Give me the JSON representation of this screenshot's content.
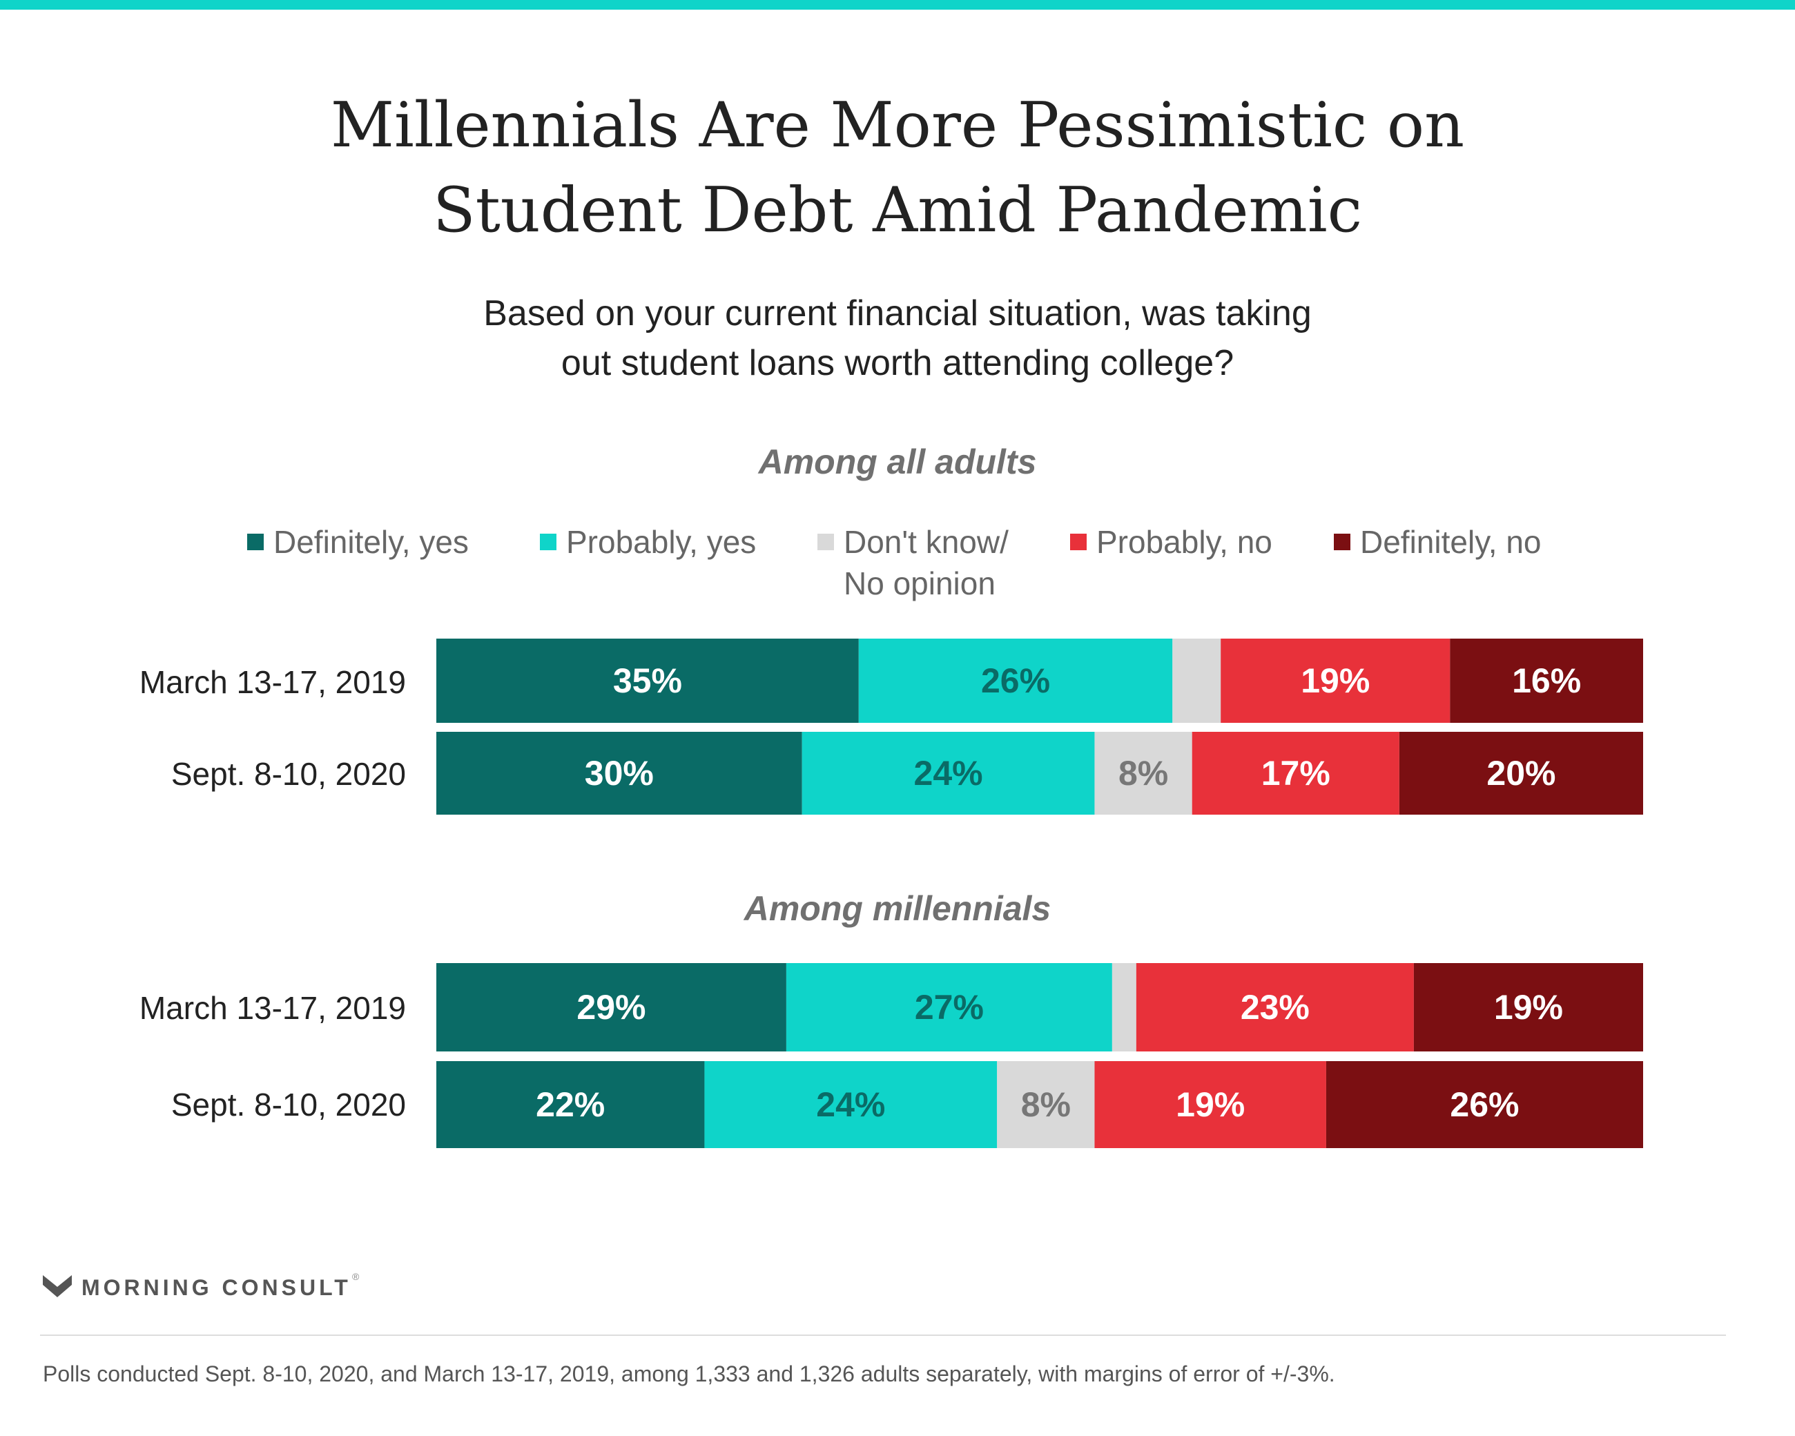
{
  "title_lines": [
    "Millennials Are More Pessimistic on",
    "Student Debt Amid Pandemic"
  ],
  "subtitle_lines": [
    "Based on your current financial situation, was taking",
    "out student loans worth attending college?"
  ],
  "legend": [
    {
      "label": "Definitely, yes",
      "color": "#0a6b66"
    },
    {
      "label": "Probably, yes",
      "color": "#0fd4c9"
    },
    {
      "label": "Don't know/\nNo opinion",
      "color": "#d9d9d9"
    },
    {
      "label": "Probably, no",
      "color": "#e8313a"
    },
    {
      "label": "Definitely, no",
      "color": "#7b0f12"
    }
  ],
  "chart_data": {
    "type": "bar",
    "orientation": "horizontal",
    "stacked": true,
    "unit": "%",
    "title": "Millennials Are More Pessimistic on Student Debt Amid Pandemic",
    "subtitle": "Based on your current financial situation, was taking out student loans worth attending college?",
    "series_names": [
      "Definitely, yes",
      "Probably, yes",
      "Don't know/ No opinion",
      "Probably, no",
      "Definitely, no"
    ],
    "legend_position": "top",
    "groups": [
      {
        "title": "Among all adults",
        "rows": [
          {
            "label": "March 13-17, 2019",
            "values": [
              35,
              26,
              4,
              19,
              16
            ],
            "labels": [
              "35%",
              "26%",
              "",
              "19%",
              "16%"
            ]
          },
          {
            "label": "Sept. 8-10, 2020",
            "values": [
              30,
              24,
              8,
              17,
              20
            ],
            "labels": [
              "30%",
              "24%",
              "8%",
              "17%",
              "20%"
            ]
          }
        ]
      },
      {
        "title": "Among millennials",
        "rows": [
          {
            "label": "March 13-17, 2019",
            "values": [
              29,
              27,
              2,
              23,
              19
            ],
            "labels": [
              "29%",
              "27%",
              "",
              "23%",
              "19%"
            ]
          },
          {
            "label": "Sept. 8-10, 2020",
            "values": [
              22,
              24,
              8,
              19,
              26
            ],
            "labels": [
              "22%",
              "24%",
              "8%",
              "19%",
              "26%"
            ]
          }
        ]
      }
    ],
    "label_colors": [
      "#ffffff",
      "#0a6b66",
      "#777777",
      "#ffffff",
      "#ffffff"
    ]
  },
  "brand": {
    "name": "MORNING CONSULT",
    "tm": "®",
    "logo_color": "#555555"
  },
  "footnote": "Polls conducted Sept. 8-10, 2020, and March 13-17, 2019, among 1,333 and 1,326 adults separately, with margins of error of +/-3%."
}
